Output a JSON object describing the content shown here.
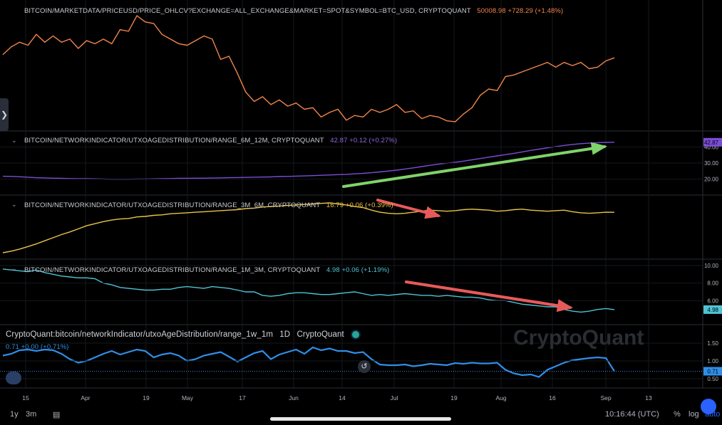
{
  "chart_data": [
    {
      "type": "line",
      "title": "BITCOIN/MARKETDATA/PRICEUSD/PRICE_OHLCV?EXCHANGE=ALL_EXCHANGE&MARKET=SPOT&SYMBOL=BTC_USD, CRYPTOQUANT",
      "last_value": "50008.98",
      "change": "+728.29 (+1.48%)",
      "color": "#f2854a",
      "series": [
        {
          "values": [
            51000,
            53500,
            55000,
            54000,
            57500,
            55000,
            57000,
            55000,
            56000,
            53000,
            55500,
            54500,
            56000,
            54500,
            59000,
            58500,
            63500,
            61500,
            61000,
            57500,
            56000,
            54500,
            54000,
            55500,
            57000,
            56000,
            49500,
            50500,
            45000,
            39000,
            36000,
            37500,
            35000,
            36500,
            34500,
            35500,
            33500,
            34000,
            31000,
            32500,
            33500,
            30000,
            31500,
            31000,
            33500,
            32500,
            33500,
            35000,
            32500,
            33000,
            30500,
            31500,
            31000,
            29800,
            29500,
            32000,
            34000,
            38000,
            40000,
            39500,
            44000,
            44500,
            45500,
            46500,
            47500,
            48500,
            47000,
            48500,
            47500,
            48500,
            46500,
            47000,
            49000,
            50000
          ]
        }
      ],
      "xlabel": "",
      "ylabel": ""
    },
    {
      "type": "line",
      "title": "BITCOIN/NETWORKINDICATOR/UTXOAGEDISTRIBUTION/RANGE_6M_12M, CRYPTOQUANT",
      "last_value": "42.87",
      "change": "+0.12 (+0.27%)",
      "color": "#7b4dd6",
      "ylim": [
        15,
        45
      ],
      "yticks": [
        "40.00",
        "30.00",
        "20.00"
      ],
      "badge": "42.87",
      "series": [
        {
          "values": [
            21.8,
            21.7,
            21.5,
            21.2,
            20.9,
            20.8,
            20.6,
            20.5,
            20.4,
            20.3,
            20.3,
            20.2,
            20.1,
            20.0,
            20.0,
            20.0,
            20.1,
            20.1,
            20.2,
            20.3,
            20.4,
            20.5,
            20.5,
            20.6,
            20.6,
            20.7,
            20.8,
            20.9,
            21.0,
            21.1,
            21.2,
            21.3,
            21.4,
            21.6,
            21.7,
            21.9,
            22.0,
            22.2,
            22.4,
            22.6,
            22.8,
            23.0,
            23.3,
            23.6,
            24.0,
            24.5,
            25.0,
            25.6,
            26.3,
            27.0,
            27.8,
            28.6,
            29.3,
            29.9,
            30.5,
            31.2,
            32.0,
            32.8,
            33.6,
            34.4,
            35.2,
            36.0,
            36.9,
            37.8,
            38.6,
            39.4,
            40.2,
            40.9,
            41.5,
            42.0,
            42.3,
            42.6,
            42.8,
            42.87
          ]
        }
      ]
    },
    {
      "type": "line",
      "title": "BITCOIN/NETWORKINDICATOR/UTXOAGEDISTRIBUTION/RANGE_3M_6M, CRYPTOQUANT",
      "last_value": "16.79",
      "change": "+0.06 (+0.39%)",
      "color": "#e9c44a",
      "series": [
        {
          "values": [
            9.0,
            9.3,
            9.7,
            10.2,
            10.7,
            11.3,
            11.9,
            12.5,
            13.0,
            13.6,
            14.2,
            14.6,
            15.0,
            15.3,
            15.5,
            15.6,
            15.9,
            16.0,
            16.2,
            16.3,
            16.5,
            16.6,
            16.7,
            16.8,
            16.9,
            17.0,
            17.1,
            17.2,
            17.3,
            17.5,
            17.6,
            17.8,
            17.9,
            18.0,
            18.1,
            18.2,
            18.3,
            18.4,
            18.5,
            18.6,
            18.4,
            18.2,
            17.9,
            17.7,
            17.2,
            16.8,
            16.6,
            16.5,
            16.6,
            16.8,
            17.0,
            17.2,
            17.1,
            17.0,
            17.1,
            17.3,
            17.4,
            17.3,
            17.2,
            17.0,
            17.1,
            17.3,
            17.4,
            17.2,
            17.1,
            17.0,
            17.1,
            17.2,
            16.9,
            16.7,
            16.6,
            16.7,
            16.8,
            16.79
          ]
        }
      ]
    },
    {
      "type": "line",
      "title": "BITCOIN/NETWORKINDICATOR/UTXOAGEDISTRIBUTION/RANGE_1M_3M, CRYPTOQUANT",
      "last_value": "4.98",
      "change": "+0.06 (+1.19%)",
      "color": "#4fc3d6",
      "ylim": [
        4,
        10
      ],
      "yticks": [
        "10.00",
        "8.00",
        "6.00"
      ],
      "badge": "4.98",
      "series": [
        {
          "values": [
            9.6,
            9.5,
            9.4,
            9.3,
            9.5,
            9.2,
            9.0,
            8.8,
            8.7,
            8.6,
            8.6,
            8.5,
            8.0,
            7.8,
            7.5,
            7.4,
            7.3,
            7.2,
            7.2,
            7.3,
            7.3,
            7.5,
            7.6,
            7.5,
            7.4,
            7.6,
            7.5,
            7.4,
            7.2,
            7.0,
            7.0,
            6.6,
            6.5,
            6.6,
            6.8,
            6.9,
            6.9,
            6.8,
            6.7,
            6.7,
            6.8,
            6.9,
            7.0,
            6.8,
            6.6,
            6.7,
            6.6,
            6.7,
            6.8,
            6.7,
            6.6,
            6.6,
            6.5,
            6.6,
            6.5,
            6.4,
            6.4,
            6.3,
            6.1,
            6.0,
            6.0,
            5.8,
            5.6,
            5.5,
            5.4,
            5.3,
            5.3,
            5.0,
            4.8,
            4.7,
            4.8,
            5.0,
            5.1,
            4.98
          ]
        }
      ]
    },
    {
      "type": "line",
      "title": "CryptoQuant:bitcoin/networkIndicator/utxoAgeDistribution/range_1w_1m",
      "interval": "1D",
      "source": "CryptoQuant",
      "last_value": "0.71",
      "change": "+0.00 (+0.71%)",
      "color": "#2f8fe8",
      "ylim": [
        0.4,
        1.6
      ],
      "yticks": [
        "1.50",
        "1.00",
        "0.50"
      ],
      "badge": "0.71",
      "series": [
        {
          "values": [
            1.15,
            1.2,
            1.3,
            1.32,
            1.28,
            1.32,
            1.3,
            1.2,
            1.05,
            0.95,
            1.0,
            1.1,
            1.2,
            1.28,
            1.18,
            1.25,
            1.32,
            1.28,
            1.1,
            1.18,
            1.22,
            1.15,
            1.0,
            1.05,
            1.15,
            1.2,
            1.25,
            1.12,
            0.98,
            1.1,
            1.22,
            1.28,
            1.05,
            1.18,
            1.25,
            1.32,
            1.2,
            1.38,
            1.3,
            1.35,
            1.28,
            1.28,
            1.22,
            1.25,
            1.05,
            0.9,
            0.88,
            0.88,
            0.9,
            0.85,
            0.88,
            0.92,
            0.9,
            0.88,
            0.94,
            0.92,
            0.95,
            0.93,
            0.93,
            0.95,
            0.75,
            0.65,
            0.6,
            0.62,
            0.55,
            0.75,
            0.85,
            0.95,
            1.02,
            1.05,
            1.08,
            1.1,
            1.08,
            0.71
          ]
        }
      ]
    }
  ],
  "x_ticks": [
    "15",
    "Apr",
    "19",
    "May",
    "17",
    "Jun",
    "14",
    "Jul",
    "19",
    "Aug",
    "16",
    "Sep",
    "13"
  ],
  "pane_icons": [
    "chevron-down-icon"
  ],
  "watermark": "CryptoQuant",
  "bottom_bar": {
    "range_1y": "1y",
    "range_3m": "3m",
    "time": "10:16:44 (UTC)",
    "percent": "%",
    "log": "log",
    "auto": "auto"
  },
  "annotations": [
    {
      "type": "arrow",
      "color": "#7fd36a",
      "direction": "up"
    },
    {
      "type": "arrow",
      "color": "#e85a5a",
      "direction": "down"
    },
    {
      "type": "arrow",
      "color": "#e85a5a",
      "direction": "down"
    }
  ]
}
